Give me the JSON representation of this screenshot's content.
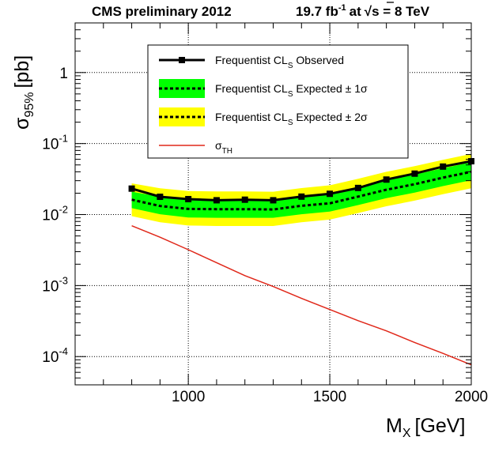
{
  "header": {
    "left": "CMS preliminary 2012",
    "lumi_value": "19.7 fb",
    "lumi_exp": "-1",
    "lumi_at": "at",
    "sqrt_symbol": "√",
    "energy_rest": "s = 8 TeV"
  },
  "axes": {
    "x_main": "M",
    "x_sub": "X",
    "x_unit": "[GeV]",
    "y_main": "σ",
    "y_sub": "95%",
    "y_unit": "[pb]"
  },
  "legend": {
    "observed": {
      "a": "Frequentist CL",
      "sub": "S",
      "b": " Observed"
    },
    "exp1": {
      "a": "Frequentist CL",
      "sub": "S",
      "b": "  Expected ± 1σ"
    },
    "exp2": {
      "a": "Frequentist CL",
      "sub": "S",
      "b": "  Expected ± 2σ"
    },
    "theory": {
      "a": "σ",
      "sub": "TH"
    }
  },
  "chart_data": {
    "type": "line",
    "x": [
      800,
      900,
      1000,
      1100,
      1200,
      1300,
      1400,
      1500,
      1600,
      1700,
      1800,
      1900,
      2000
    ],
    "xlim": [
      600,
      2000
    ],
    "ylim": [
      4e-05,
      5
    ],
    "y_scale": "log",
    "grid": true,
    "legend_position": "top",
    "x_ticks": [
      1000,
      1500,
      2000
    ],
    "x_tick_labels": [
      "1000",
      "1500",
      "2000"
    ],
    "y_ticks": [
      0.0001,
      0.001,
      0.01,
      0.1,
      1
    ],
    "y_tick_labels": [
      {
        "base": "10",
        "exp": "-4"
      },
      {
        "base": "10",
        "exp": "-3"
      },
      {
        "base": "10",
        "exp": "-2"
      },
      {
        "base": "10",
        "exp": "-1"
      },
      {
        "base": "1",
        "exp": ""
      }
    ],
    "colors": {
      "one_sigma": "#00ff00",
      "two_sigma": "#ffff00",
      "theory": "#e0281a",
      "observed": "#000000"
    },
    "series": [
      {
        "values": [
          0.0232,
          0.0178,
          0.0165,
          0.0159,
          0.0162,
          0.0159,
          0.0179,
          0.0196,
          0.0237,
          0.0311,
          0.0377,
          0.0474,
          0.0564
        ]
      },
      {
        "values": [
          0.0162,
          0.0132,
          0.012,
          0.0119,
          0.0119,
          0.0118,
          0.0133,
          0.0144,
          0.0179,
          0.0224,
          0.0268,
          0.0331,
          0.04
        ]
      },
      {
        "values": [
          0.021,
          0.0178,
          0.0163,
          0.0162,
          0.0162,
          0.016,
          0.018,
          0.0196,
          0.0243,
          0.0305,
          0.0365,
          0.0449,
          0.0543
        ]
      },
      {
        "values": [
          0.0123,
          0.0101,
          0.0091,
          0.009,
          0.009,
          0.009,
          0.0101,
          0.011,
          0.0136,
          0.017,
          0.0204,
          0.0252,
          0.0305
        ]
      },
      {
        "values": [
          0.0275,
          0.0234,
          0.0214,
          0.0212,
          0.0212,
          0.021,
          0.0236,
          0.0258,
          0.0319,
          0.04,
          0.048,
          0.059,
          0.0715
        ]
      },
      {
        "values": [
          0.0095,
          0.0078,
          0.007,
          0.0069,
          0.0069,
          0.0069,
          0.0078,
          0.0085,
          0.0105,
          0.0131,
          0.0157,
          0.0194,
          0.0234
        ]
      },
      {
        "values": [
          0.00695,
          0.0048,
          0.0032,
          0.0021,
          0.00138,
          0.00097,
          0.00066,
          0.00046,
          0.00032,
          0.00023,
          0.000158,
          0.000111,
          7.65e-05
        ]
      }
    ]
  }
}
